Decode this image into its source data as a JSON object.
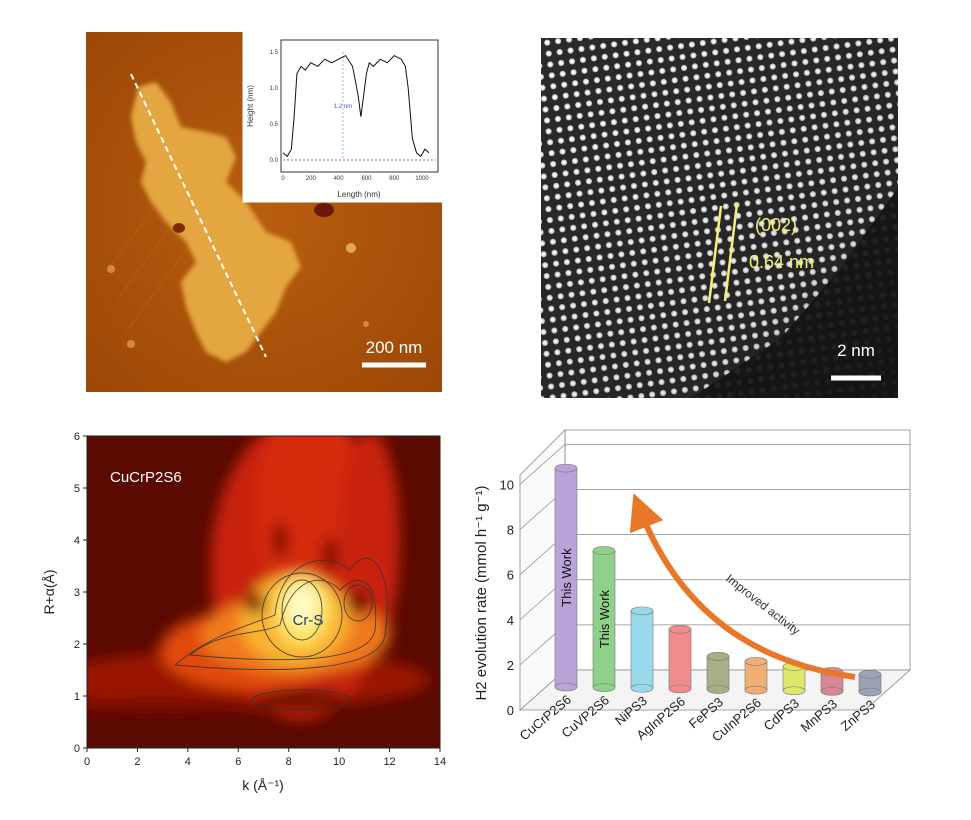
{
  "panels": {
    "afm": {
      "scale_bar_label": "200 nm",
      "inset": {
        "xlabel": "Length (nm)",
        "ylabel": "Height (nm)",
        "xticks": [
          "0",
          "200",
          "400",
          "600",
          "800",
          "1000"
        ],
        "yticks": [
          "0.0",
          "0.5",
          "1.0",
          "1.5"
        ],
        "annotation": "1.2 nm"
      }
    },
    "haadf": {
      "plane_label": "(002)",
      "spacing_label": "0.64 nm",
      "scale_bar_label": "2 nm"
    },
    "wavelet": {
      "sample_label": "CuCrP2S6",
      "peak_label": "Cr-S",
      "xlabel": "k (Å⁻¹)",
      "ylabel": "R+α(Å)",
      "xticks": [
        "0",
        "2",
        "4",
        "6",
        "8",
        "10",
        "12",
        "14"
      ],
      "yticks": [
        "0",
        "1",
        "2",
        "3",
        "4",
        "5",
        "6"
      ]
    },
    "h2": {
      "ylabel": "H2 evolution rate (mmol h⁻¹ g⁻¹)",
      "yticks": [
        "0",
        "2",
        "4",
        "6",
        "8",
        "10"
      ],
      "arrow_label": "Improved activity",
      "bar_labels": [
        "This Work",
        "This Work"
      ]
    }
  },
  "chart_data": [
    {
      "type": "line",
      "title": "",
      "xlabel": "Length (nm)",
      "ylabel": "Height (nm)",
      "xlim": [
        0,
        1100
      ],
      "ylim": [
        0,
        1.7
      ],
      "series": [
        {
          "x": [
            0,
            30,
            60,
            80,
            100,
            130,
            160,
            200,
            250,
            300,
            350,
            400,
            450,
            500,
            540,
            560,
            580,
            600,
            620,
            650,
            700,
            750,
            800,
            850,
            880,
            900,
            930,
            960,
            990,
            1020,
            1050
          ],
          "y": [
            0.1,
            0.05,
            0.15,
            0.6,
            1.2,
            1.3,
            1.25,
            1.35,
            1.3,
            1.4,
            1.35,
            1.4,
            1.45,
            1.3,
            0.9,
            0.6,
            0.9,
            1.2,
            1.35,
            1.3,
            1.4,
            1.35,
            1.45,
            1.4,
            1.3,
            1.0,
            0.3,
            0.1,
            0.05,
            0.15,
            0.1
          ]
        }
      ]
    },
    {
      "type": "heatmap",
      "title": "CuCrP2S6",
      "xlabel": "k (Å⁻¹)",
      "ylabel": "R+α(Å)",
      "xlim": [
        0,
        14
      ],
      "ylim": [
        0,
        6
      ],
      "peak": {
        "label": "Cr-S",
        "k": 8.7,
        "r": 2.4
      }
    },
    {
      "type": "bar",
      "title": "",
      "ylabel": "H2 evolution rate (mmol h⁻¹ g⁻¹)",
      "ylim": [
        0,
        10
      ],
      "categories": [
        "CuCrP2S6",
        "CuVP2S6",
        "NiPS3",
        "AgInP2S6",
        "FePS3",
        "CuInP2S6",
        "CdPS3",
        "MnPS3",
        "ZnPS3"
      ],
      "values": [
        9.9,
        6.2,
        3.5,
        2.7,
        1.5,
        1.3,
        1.1,
        0.9,
        0.8
      ],
      "colors": [
        "#b9a3d9",
        "#8fd18a",
        "#9ad9ec",
        "#f08c8c",
        "#a9ae86",
        "#f0ad74",
        "#dde86a",
        "#d48a96",
        "#9aa3b5"
      ]
    }
  ]
}
